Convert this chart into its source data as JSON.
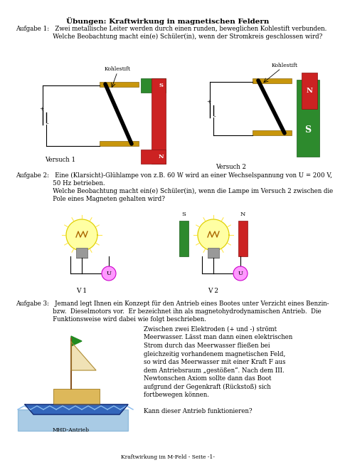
{
  "title": "Übungen: Kraftwirkung in magnetischen Feldern",
  "footer": "Kraftwirkung im M-Feld - Seite -1-",
  "aufgabe1_line1": "Aufgabe 1:   Zwei metallische Leiter werden durch einen runden, beweglichen Kohlestift verbunden.",
  "aufgabe1_line2": "                   Welche Beobachtung macht ein(e) Schüler(in), wenn der Stromkreis geschlossen wird?",
  "versuch1": "Versuch 1",
  "versuch2": "Versuch 2",
  "aufgabe2_line1": "Aufgabe 2:   Eine (Klarsicht)-Glühlampe von z.B. 60 W wird an einer Wechselspannung von U = 200 V,",
  "aufgabe2_line2": "                   50 Hz betrieben.",
  "aufgabe2_line3": "                   Welche Beobachtung macht ein(e) Schüler(in), wenn die Lampe im Versuch 2 zwischen die",
  "aufgabe2_line4": "                   Pole eines Magneten gehalten wird?",
  "v1": "V 1",
  "v2": "V 2",
  "aufgabe3_line1": "Aufgabe 3:   Jemand legt Ihnen ein Konzept für den Antrieb eines Bootes unter Verzicht eines Benzin-",
  "aufgabe3_line2": "                   bzw.  Dieselmotors vor.  Er bezeichnet ihn als magnetohydrodynamischen Antrieb.  Die",
  "aufgabe3_line3": "                   Funktionsweise wird dabei wie folgt beschrieben.",
  "mhd": "MHD-Antrieb",
  "a3t1": "Zwischen zwei Elektroden (+ und -) strömt",
  "a3t2": "Meerwasser. Lässt man dann einen elektrischen",
  "a3t3": "Strom durch das Meerwasser fließen bei",
  "a3t4": "gleichzeitig vorhandenem magnetischen Feld,",
  "a3t5": "so wird das Meerwasser mit einer Kraft F aus",
  "a3t6": "dem Antriebsraum „gestößen“. Nach dem III.",
  "a3t7": "Newtonschen Axiom sollte dann das Boot",
  "a3t8": "aufgrund der Gegenkraft (Rückstoß) sich",
  "a3t9": "fortbewegen können.",
  "a3t10": "Kann dieser Antrieb funktionieren?",
  "kohlestift": "Kohlestift"
}
